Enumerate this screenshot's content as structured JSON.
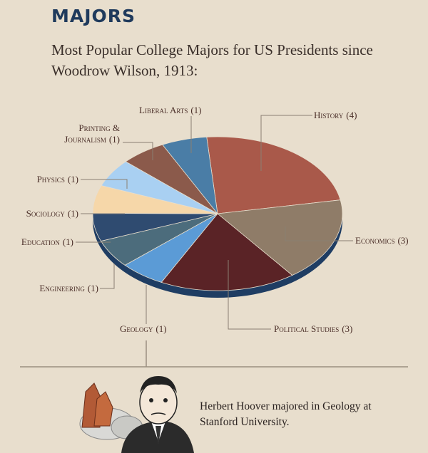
{
  "chart_data": {
    "type": "pie",
    "title": "MAJORS",
    "subtitle": "Most Popular College Majors for US Presidents since Woodrow Wilson, 1913:",
    "categories": [
      "History",
      "Economics",
      "Political Studies",
      "Geology",
      "Engineering",
      "Education",
      "Sociology",
      "Physics",
      "Printing & Journalism",
      "Liberal Arts"
    ],
    "values": [
      4,
      3,
      3,
      1,
      1,
      1,
      1,
      1,
      1,
      1
    ],
    "value_labels": [
      "(4)",
      "(3)",
      "(3)",
      "(1)",
      "(1)",
      "(1)",
      "(1)",
      "(1)",
      "(1)",
      "(1)"
    ],
    "colors": [
      "#a9594a",
      "#8f7c68",
      "#5a2326",
      "#5b9bd6",
      "#4c6c7c",
      "#2f4b70",
      "#f6d7a9",
      "#a9d0f2",
      "#8b5a4b",
      "#4a7da6"
    ]
  },
  "note": "Herbert Hoover majored in Geology at Stanford University."
}
